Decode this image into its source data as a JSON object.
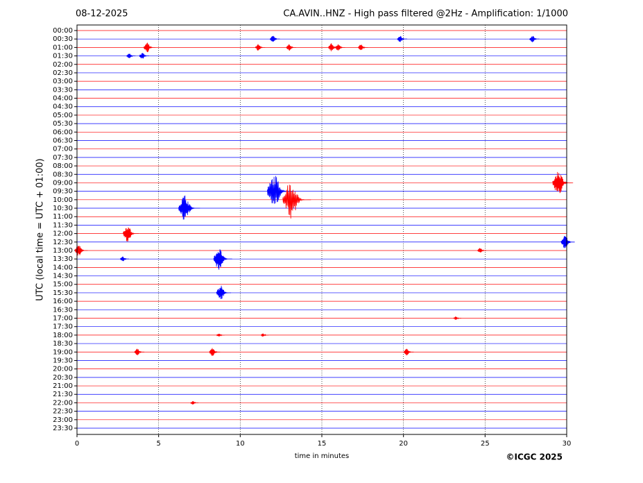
{
  "chart_data": {
    "type": "helicorder",
    "title_left": "08-12-2025",
    "title": "CA.AVIN..HNZ - High pass filtered @2Hz - Amplification: 1/1000",
    "y_label": "UTC (local time = UTC + 01:00)",
    "x_label": "time in minutes",
    "credit": "©ICGC 2025",
    "xlim": [
      0,
      30
    ],
    "xticks": [
      0,
      5,
      10,
      15,
      20,
      25,
      30
    ],
    "grid": true,
    "row_colors": [
      "#ff0000",
      "#0000ff"
    ],
    "rows": [
      "00:00",
      "00:30",
      "01:00",
      "01:30",
      "02:00",
      "02:30",
      "03:00",
      "03:30",
      "04:00",
      "04:30",
      "05:00",
      "05:30",
      "06:00",
      "06:30",
      "07:00",
      "07:30",
      "08:00",
      "08:30",
      "09:00",
      "09:30",
      "10:00",
      "10:30",
      "11:00",
      "11:30",
      "12:00",
      "12:30",
      "13:00",
      "13:30",
      "14:00",
      "14:30",
      "15:00",
      "15:30",
      "16:00",
      "16:30",
      "17:00",
      "17:30",
      "18:00",
      "18:30",
      "19:00",
      "19:30",
      "20:00",
      "20:30",
      "21:00",
      "21:30",
      "22:00",
      "22:30",
      "23:00",
      "23:30"
    ],
    "events": [
      {
        "row": 1,
        "x": 12.0,
        "amplitude": 0.4
      },
      {
        "row": 1,
        "x": 19.8,
        "amplitude": 0.4
      },
      {
        "row": 1,
        "x": 27.9,
        "amplitude": 0.4
      },
      {
        "row": 2,
        "x": 4.3,
        "amplitude": 0.6
      },
      {
        "row": 2,
        "x": 11.1,
        "amplitude": 0.4
      },
      {
        "row": 2,
        "x": 13.0,
        "amplitude": 0.4
      },
      {
        "row": 2,
        "x": 15.6,
        "amplitude": 0.5
      },
      {
        "row": 2,
        "x": 16.0,
        "amplitude": 0.4
      },
      {
        "row": 2,
        "x": 17.4,
        "amplitude": 0.4
      },
      {
        "row": 3,
        "x": 3.2,
        "amplitude": 0.3
      },
      {
        "row": 3,
        "x": 4.0,
        "amplitude": 0.4
      },
      {
        "row": 18,
        "x": 29.5,
        "amplitude": 1.5
      },
      {
        "row": 19,
        "x": 12.1,
        "amplitude": 2.0
      },
      {
        "row": 20,
        "x": 13.1,
        "amplitude": 2.3
      },
      {
        "row": 21,
        "x": 6.6,
        "amplitude": 1.6
      },
      {
        "row": 24,
        "x": 3.1,
        "amplitude": 1.0
      },
      {
        "row": 25,
        "x": 29.9,
        "amplitude": 0.8
      },
      {
        "row": 26,
        "x": 0.1,
        "amplitude": 0.7
      },
      {
        "row": 26,
        "x": 24.7,
        "amplitude": 0.3
      },
      {
        "row": 27,
        "x": 8.7,
        "amplitude": 1.3
      },
      {
        "row": 27,
        "x": 2.8,
        "amplitude": 0.3
      },
      {
        "row": 31,
        "x": 8.8,
        "amplitude": 0.9
      },
      {
        "row": 34,
        "x": 23.2,
        "amplitude": 0.2
      },
      {
        "row": 36,
        "x": 8.7,
        "amplitude": 0.2
      },
      {
        "row": 36,
        "x": 11.4,
        "amplitude": 0.2
      },
      {
        "row": 38,
        "x": 3.7,
        "amplitude": 0.4
      },
      {
        "row": 38,
        "x": 8.3,
        "amplitude": 0.5
      },
      {
        "row": 38,
        "x": 20.2,
        "amplitude": 0.4
      },
      {
        "row": 44,
        "x": 7.1,
        "amplitude": 0.2
      }
    ]
  }
}
